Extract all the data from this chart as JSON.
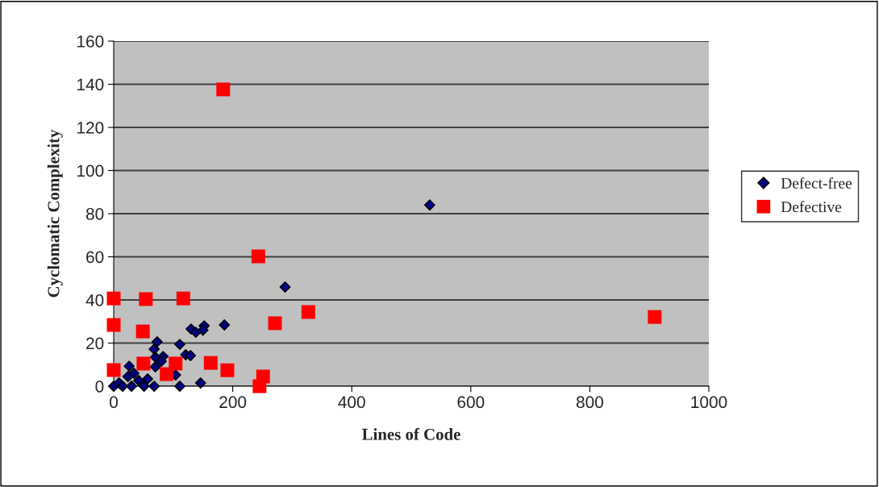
{
  "chart_data": {
    "type": "scatter",
    "xlabel": "Lines of Code",
    "ylabel": "Cyclomatic Complexity",
    "xlim": [
      0,
      1000
    ],
    "xticks": [
      0,
      200,
      400,
      600,
      800,
      1000
    ],
    "ylim": [
      0,
      160
    ],
    "yticks": [
      0,
      20,
      40,
      60,
      80,
      100,
      120,
      140,
      160
    ],
    "grid": "y",
    "legend": "right",
    "series": [
      {
        "name": "Defect-free",
        "color": "#000080",
        "marker": "diamond",
        "x": [
          531,
          288,
          186,
          152,
          130,
          138,
          150,
          111,
          73,
          68,
          121,
          129,
          83,
          70,
          26,
          146,
          111,
          68,
          51,
          0,
          9,
          42,
          57,
          24,
          70,
          34,
          15,
          30,
          104,
          80
        ],
        "values": [
          84,
          46,
          28.4,
          28,
          26.5,
          25,
          26,
          19.4,
          20.6,
          17.2,
          14.6,
          14.2,
          13.8,
          13.5,
          9.3,
          1.5,
          0,
          0,
          0,
          0,
          1.5,
          2.6,
          3.4,
          4.5,
          9,
          6,
          0,
          0,
          5.2,
          11.6
        ]
      },
      {
        "name": "Defective",
        "color": "#ff0000",
        "marker": "square",
        "x": [
          0,
          0,
          0,
          54,
          49,
          117,
          243,
          184,
          327,
          271,
          909,
          50,
          104,
          89,
          163,
          191,
          251,
          245
        ],
        "values": [
          40.7,
          28.4,
          7.5,
          40.4,
          25.4,
          40.7,
          60.2,
          137.6,
          34.4,
          29.2,
          32.1,
          10.5,
          10.5,
          5.6,
          10.8,
          7.4,
          4.5,
          0
        ]
      }
    ]
  }
}
